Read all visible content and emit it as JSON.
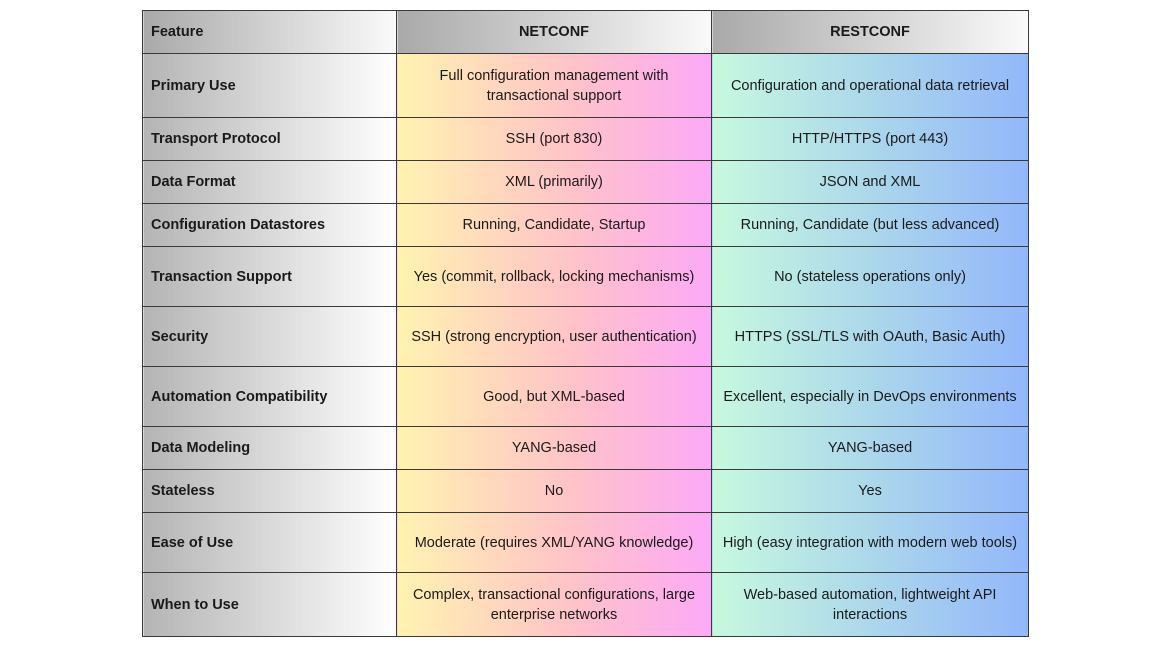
{
  "table": {
    "headers": [
      "Feature",
      "NETCONF",
      "RESTCONF"
    ],
    "rows": [
      {
        "feature": "Primary Use",
        "netconf": "Full configuration management with transactional support",
        "restconf": "Configuration and operational data retrieval"
      },
      {
        "feature": "Transport Protocol",
        "netconf": "SSH (port 830)",
        "restconf": "HTTP/HTTPS (port 443)"
      },
      {
        "feature": "Data Format",
        "netconf": "XML (primarily)",
        "restconf": "JSON and XML"
      },
      {
        "feature": "Configuration Datastores",
        "netconf": "Running, Candidate, Startup",
        "restconf": "Running, Candidate (but less advanced)"
      },
      {
        "feature": "Transaction Support",
        "netconf": "Yes (commit, rollback, locking mechanisms)",
        "restconf": "No (stateless operations only)"
      },
      {
        "feature": "Security",
        "netconf": "SSH (strong encryption, user authentication)",
        "restconf": "HTTPS (SSL/TLS with OAuth, Basic Auth)"
      },
      {
        "feature": "Automation Compatibility",
        "netconf": "Good, but XML-based",
        "restconf": "Excellent, especially in DevOps environments"
      },
      {
        "feature": "Data Modeling",
        "netconf": "YANG-based",
        "restconf": "YANG-based"
      },
      {
        "feature": "Stateless",
        "netconf": "No",
        "restconf": "Yes"
      },
      {
        "feature": "Ease of Use",
        "netconf": "Moderate (requires XML/YANG knowledge)",
        "restconf": "High (easy integration with modern web tools)"
      },
      {
        "feature": "When to Use",
        "netconf": "Complex, transactional configurations, large enterprise networks",
        "restconf": "Web-based automation, lightweight API interactions"
      }
    ]
  },
  "colors": {
    "border": "#3a3a3a",
    "netconf_gradient": [
      "#fff3b0",
      "#ffc3c8",
      "#fca9f7"
    ],
    "restconf_gradient": [
      "#c7f9df",
      "#a9d4ec",
      "#93b7fb"
    ],
    "feature_gradient": [
      "#b4b4b4",
      "#ffffff"
    ]
  }
}
